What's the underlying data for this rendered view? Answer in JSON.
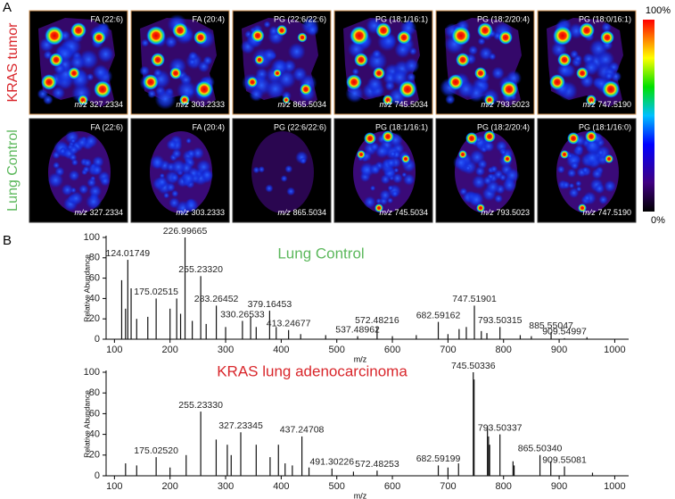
{
  "panel_a": {
    "label": "A",
    "mz_prefix": "m/z",
    "rows": [
      {
        "label": "KRAS tumor",
        "tiles": [
          {
            "lipid": "FA (22:6)",
            "mz": "327.2334"
          },
          {
            "lipid": "FA (20:4)",
            "mz": "303.2333"
          },
          {
            "lipid": "PG (22:6/22:6)",
            "mz": "865.5034"
          },
          {
            "lipid": "PG (18:1/16:1)",
            "mz": "745.5034"
          },
          {
            "lipid": "PG (18:2/20:4)",
            "mz": "793.5023"
          },
          {
            "lipid": "PG (18:0/16:1)",
            "mz": "747.5190"
          }
        ]
      },
      {
        "label": "Lung Control",
        "tiles": [
          {
            "lipid": "FA (22:6)",
            "mz": "327.2334"
          },
          {
            "lipid": "FA (20:4)",
            "mz": "303.2333"
          },
          {
            "lipid": "PG (22:6/22:6)",
            "mz": "865.5034"
          },
          {
            "lipid": "PG (18:1/16:1)",
            "mz": "745.5034"
          },
          {
            "lipid": "PG (18:2/20:4)",
            "mz": "793.5023"
          },
          {
            "lipid": "PG (18:1/16:0)",
            "mz": "747.5190"
          }
        ]
      }
    ],
    "colorbar": {
      "max_label": "100%",
      "min_label": "0%"
    }
  },
  "panel_b": {
    "label": "B"
  },
  "chart_data": [
    {
      "type": "spectrum",
      "title": "Lung Control",
      "title_color": "#5cb85c",
      "color": "#111111",
      "xlabel": "m/z",
      "ylabel": "Relative Abundance",
      "x": [
        113,
        120,
        124.01749,
        130,
        140,
        160,
        175.02515,
        200,
        212,
        219,
        226.99665,
        240,
        255.2332,
        265,
        283.26452,
        300,
        330.26533,
        345,
        355,
        379.16453,
        391,
        413.24677,
        435,
        480,
        537.48962,
        572.48216,
        600,
        643,
        682.59162,
        700,
        720,
        733,
        747.51901,
        760,
        770,
        793.50315,
        830,
        850,
        885.55047,
        909.54997,
        950
      ],
      "values": [
        58,
        30,
        78,
        50,
        20,
        22,
        40,
        30,
        40,
        25,
        100,
        18,
        62,
        15,
        33,
        12,
        18,
        22,
        12,
        28,
        12,
        9,
        5,
        4,
        3,
        12,
        3,
        4,
        17,
        5,
        10,
        12,
        33,
        8,
        6,
        12,
        4,
        3,
        7,
        1,
        2
      ],
      "x_labels": [
        null,
        null,
        "124.01749",
        null,
        null,
        null,
        "175.02515",
        null,
        null,
        null,
        "226.99665",
        null,
        "255.23320",
        null,
        "283.26452",
        null,
        "330.26533",
        null,
        null,
        "379.16453",
        null,
        "413.24677",
        null,
        null,
        "537.48962",
        "572.48216",
        null,
        null,
        "682.59162",
        null,
        null,
        null,
        "747.51901",
        null,
        null,
        "793.50315",
        null,
        null,
        "885.55047",
        "909.54997",
        null
      ],
      "xlim": [
        85,
        1025
      ],
      "xticks": [
        100,
        200,
        300,
        400,
        500,
        600,
        700,
        800,
        900,
        1000
      ],
      "ylim": [
        0,
        100
      ],
      "yticks": [
        0,
        20,
        40,
        60,
        80,
        100
      ]
    },
    {
      "type": "spectrum",
      "title": "KRAS lung adenocarcinoma",
      "title_color": "#d9262b",
      "color": "#111111",
      "xlabel": "m/z",
      "ylabel": "Relative Abundance",
      "x": [
        120,
        140,
        175.0252,
        200,
        229,
        255.2333,
        283,
        303,
        310,
        327.23345,
        355,
        380,
        395,
        407,
        420,
        437.24708,
        450,
        491.30226,
        530,
        572.48253,
        682.59199,
        700,
        719,
        745.50336,
        747,
        771,
        773,
        775,
        793.50337,
        817,
        819,
        865.5034,
        885,
        909.55081,
        960
      ],
      "values": [
        12,
        10,
        18,
        8,
        20,
        62,
        35,
        30,
        20,
        42,
        30,
        18,
        30,
        12,
        10,
        38,
        8,
        7,
        4,
        5,
        10,
        8,
        12,
        100,
        93,
        48,
        38,
        30,
        40,
        14,
        10,
        20,
        14,
        9,
        3
      ],
      "x_labels": [
        null,
        null,
        "175.02520",
        null,
        null,
        "255.23330",
        null,
        null,
        null,
        "327.23345",
        null,
        null,
        null,
        null,
        null,
        "437.24708",
        null,
        "491.30226",
        null,
        "572.48253",
        "682.59199",
        null,
        null,
        "745.50336",
        null,
        null,
        null,
        null,
        "793.50337",
        null,
        null,
        "865.50340",
        null,
        "909.55081",
        null
      ],
      "xlim": [
        85,
        1025
      ],
      "xticks": [
        100,
        200,
        300,
        400,
        500,
        600,
        700,
        800,
        900,
        1000
      ],
      "ylim": [
        0,
        100
      ],
      "yticks": [
        0,
        20,
        40,
        60,
        80,
        100
      ]
    }
  ]
}
